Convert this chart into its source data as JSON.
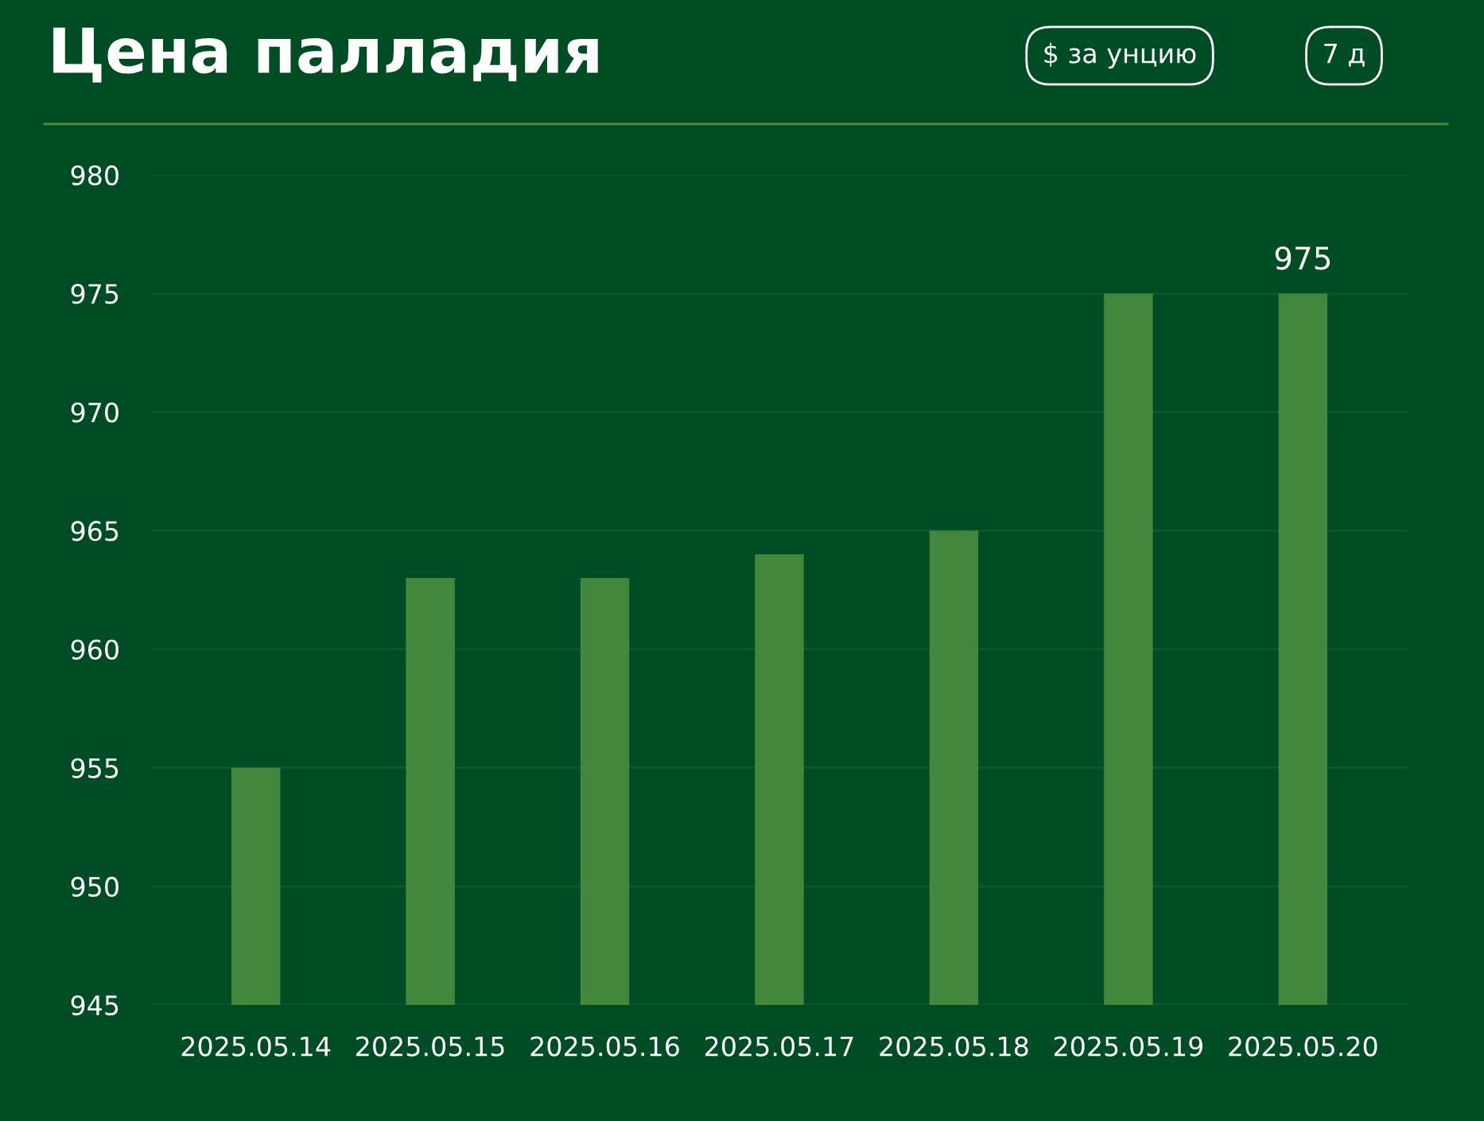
{
  "chart_data": {
    "type": "bar",
    "title": "Цена палладия",
    "annotations": [
      "$ за унцию",
      "7 д"
    ],
    "categories": [
      "2025.05.14",
      "2025.05.15",
      "2025.05.16",
      "2025.05.17",
      "2025.05.18",
      "2025.05.19",
      "2025.05.20"
    ],
    "values": [
      955,
      963,
      963,
      964,
      965,
      975,
      975
    ],
    "value_labels": [
      null,
      null,
      null,
      null,
      null,
      null,
      "975"
    ],
    "color": "#43873f",
    "ylim": [
      945,
      980
    ],
    "yticks": [
      945,
      950,
      955,
      960,
      965,
      970,
      975,
      980
    ],
    "grid": "y"
  }
}
